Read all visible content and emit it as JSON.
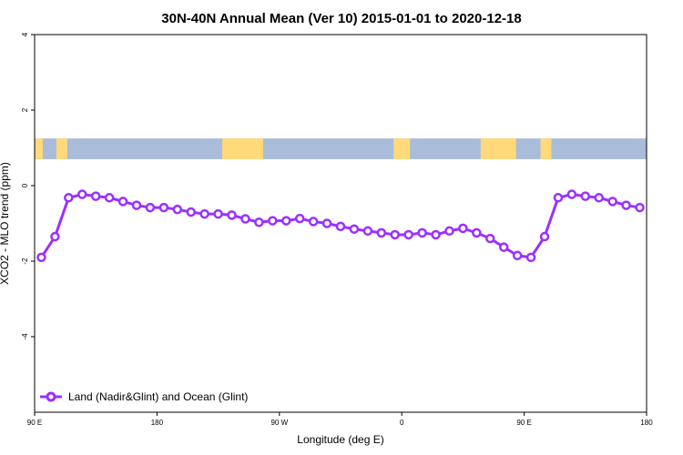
{
  "chart_data": {
    "type": "line",
    "title": "30N-40N Annual Mean (Ver 10)   2015-01-01 to 2020-12-18",
    "xlabel": "Longitude (deg E)",
    "ylabel": "XCO2 - MLO trend (ppm)",
    "xlim": [
      90,
      540
    ],
    "ylim": [
      -6,
      4
    ],
    "x_ticks": [
      {
        "value": 90,
        "label": "90 E"
      },
      {
        "value": 180,
        "label": "180"
      },
      {
        "value": 270,
        "label": "90 W"
      },
      {
        "value": 360,
        "label": "0"
      },
      {
        "value": 450,
        "label": "90 E"
      },
      {
        "value": 540,
        "label": "180"
      }
    ],
    "y_ticks": [
      {
        "value": 4,
        "label": "4"
      },
      {
        "value": 2,
        "label": "2"
      },
      {
        "value": 0,
        "label": "0"
      },
      {
        "value": -2,
        "label": "-2"
      },
      {
        "value": -4,
        "label": "-4"
      }
    ],
    "grid": false,
    "legend": {
      "position": "bottom-left"
    },
    "land_strip": {
      "y_range": [
        0.7,
        1.25
      ],
      "ocean_color": "#a9bcd9",
      "land_color": "#ffd97a"
    },
    "series": [
      {
        "name": "Land (Nadir&Glint) and Ocean (Glint)",
        "color": "#9b30ff",
        "x": [
          95,
          105,
          115,
          125,
          135,
          145,
          155,
          165,
          175,
          185,
          195,
          205,
          215,
          225,
          235,
          245,
          255,
          265,
          275,
          285,
          295,
          305,
          315,
          325,
          335,
          345,
          355,
          365,
          375,
          385,
          395,
          405,
          415,
          425,
          435,
          445,
          455,
          465,
          475,
          485,
          495,
          505,
          515,
          525,
          535
        ],
        "y": [
          -1.9,
          -1.35,
          -0.32,
          -0.23,
          -0.28,
          -0.32,
          -0.42,
          -0.52,
          -0.58,
          -0.58,
          -0.63,
          -0.7,
          -0.75,
          -0.75,
          -0.78,
          -0.88,
          -0.97,
          -0.93,
          -0.93,
          -0.87,
          -0.95,
          -1.0,
          -1.08,
          -1.15,
          -1.2,
          -1.25,
          -1.3,
          -1.3,
          -1.25,
          -1.3,
          -1.2,
          -1.13,
          -1.25,
          -1.4,
          -1.63,
          -1.85,
          -1.9,
          -1.35,
          -0.32,
          -0.23,
          -0.28,
          -0.32,
          -0.42,
          -0.52,
          -0.58
        ]
      }
    ]
  }
}
